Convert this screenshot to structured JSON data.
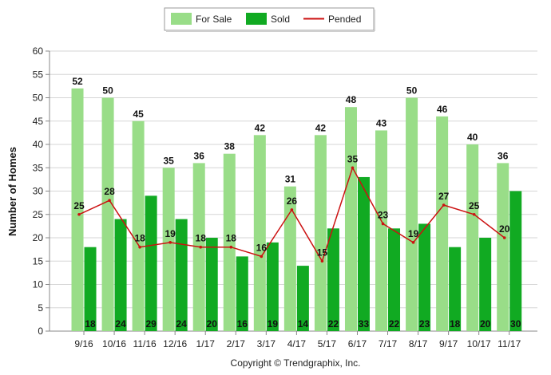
{
  "chart_data": {
    "type": "bar",
    "categories": [
      "9/16",
      "10/16",
      "11/16",
      "12/16",
      "1/17",
      "2/17",
      "3/17",
      "4/17",
      "5/17",
      "6/17",
      "7/17",
      "8/17",
      "9/17",
      "10/17",
      "11/17"
    ],
    "series": [
      {
        "name": "For Sale",
        "kind": "bar",
        "color": "#99dd88",
        "values": [
          52,
          50,
          45,
          35,
          36,
          38,
          42,
          31,
          42,
          48,
          43,
          50,
          46,
          40,
          36
        ]
      },
      {
        "name": "Sold",
        "kind": "bar",
        "color": "#11aa22",
        "values": [
          18,
          24,
          29,
          24,
          20,
          16,
          19,
          14,
          22,
          33,
          22,
          23,
          18,
          20,
          30
        ]
      },
      {
        "name": "Pended",
        "kind": "line",
        "color": "#cc1111",
        "values": [
          25,
          28,
          18,
          19,
          18,
          18,
          16,
          26,
          15,
          35,
          23,
          19,
          27,
          25,
          20
        ]
      }
    ],
    "ylabel": "Number of Homes",
    "xlabel": "",
    "ylim": [
      0,
      60
    ],
    "yticks": [
      0,
      5,
      10,
      15,
      20,
      25,
      30,
      35,
      40,
      45,
      50,
      55,
      60
    ],
    "grid": true,
    "legend_position": "top-center",
    "footer": "Copyright © Trendgraphix, Inc."
  }
}
